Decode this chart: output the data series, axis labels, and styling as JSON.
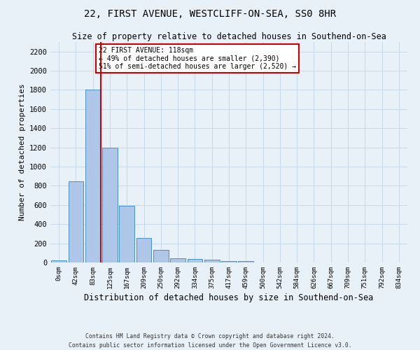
{
  "title1": "22, FIRST AVENUE, WESTCLIFF-ON-SEA, SS0 8HR",
  "title2": "Size of property relative to detached houses in Southend-on-Sea",
  "xlabel": "Distribution of detached houses by size in Southend-on-Sea",
  "ylabel": "Number of detached properties",
  "footnote1": "Contains HM Land Registry data © Crown copyright and database right 2024.",
  "footnote2": "Contains public sector information licensed under the Open Government Licence v3.0.",
  "bar_labels": [
    "0sqm",
    "42sqm",
    "83sqm",
    "125sqm",
    "167sqm",
    "209sqm",
    "250sqm",
    "292sqm",
    "334sqm",
    "375sqm",
    "417sqm",
    "459sqm",
    "500sqm",
    "542sqm",
    "584sqm",
    "626sqm",
    "667sqm",
    "709sqm",
    "751sqm",
    "792sqm",
    "834sqm"
  ],
  "bar_values": [
    20,
    850,
    1800,
    1200,
    590,
    255,
    130,
    45,
    38,
    30,
    18,
    12,
    0,
    0,
    0,
    0,
    0,
    0,
    0,
    0,
    0
  ],
  "bar_color": "#aec6e8",
  "bar_edge_color": "#4a90c4",
  "grid_color": "#c8d8e8",
  "bg_color": "#e8f0f8",
  "vline_color": "#cc0000",
  "annotation_text": "22 FIRST AVENUE: 118sqm\n← 49% of detached houses are smaller (2,390)\n51% of semi-detached houses are larger (2,520) →",
  "annotation_box_color": "#ffffff",
  "annotation_box_edge": "#cc0000",
  "ylim": [
    0,
    2300
  ],
  "yticks": [
    0,
    200,
    400,
    600,
    800,
    1000,
    1200,
    1400,
    1600,
    1800,
    2000,
    2200
  ]
}
